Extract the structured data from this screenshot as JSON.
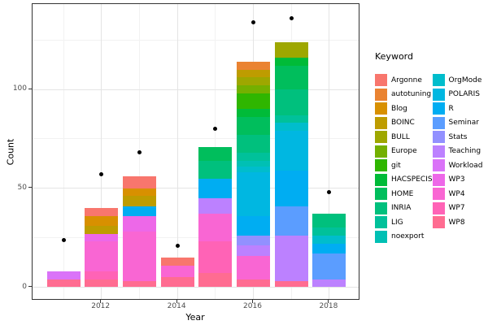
{
  "figure": {
    "x_axis_title": "Year",
    "y_axis_title": "Count",
    "legend_title": "Keyword"
  },
  "chart_data": {
    "type": "bar",
    "subtype": "stacked-with-point-overlay",
    "title": "",
    "xlabel": "Year",
    "ylabel": "Count",
    "legend_title": "Keyword",
    "legend_position": "right",
    "grid": true,
    "stack_order": "first-series-on-top",
    "categories": [
      2011,
      2012,
      2013,
      2014,
      2015,
      2016,
      2017,
      2018
    ],
    "x_major_ticks": [
      2012,
      2014,
      2016,
      2018
    ],
    "x_tick_labels": [
      "2012",
      "2014",
      "2016",
      "2018"
    ],
    "x_minor_gridlines": [
      2011,
      2013,
      2015,
      2017
    ],
    "y_major_ticks": [
      0,
      50,
      100
    ],
    "y_tick_labels": [
      "0",
      "50",
      "100"
    ],
    "y_minor_gridlines": [
      25,
      75,
      125
    ],
    "ylim": [
      -7,
      143
    ],
    "xlim": [
      2010.2,
      2018.8
    ],
    "bar_totals": [
      8,
      40,
      56,
      15,
      71,
      114,
      124,
      37
    ],
    "series": [
      {
        "name": "Argonne",
        "color": "#F8766D",
        "values": [
          0,
          4,
          6,
          4,
          0,
          0,
          0,
          0
        ]
      },
      {
        "name": "autotuning",
        "color": "#EA8331",
        "values": [
          0,
          0,
          0,
          0,
          0,
          4,
          0,
          0
        ]
      },
      {
        "name": "Blog",
        "color": "#D89000",
        "values": [
          0,
          5,
          4,
          0,
          0,
          0,
          0,
          0
        ]
      },
      {
        "name": "BOINC",
        "color": "#BE9C00",
        "values": [
          0,
          4,
          5,
          0,
          0,
          4,
          0,
          0
        ]
      },
      {
        "name": "BULL",
        "color": "#9EA700",
        "values": [
          0,
          0,
          0,
          0,
          0,
          4,
          8,
          0
        ]
      },
      {
        "name": "Europe",
        "color": "#74B000",
        "values": [
          0,
          0,
          0,
          0,
          0,
          4,
          0,
          0
        ]
      },
      {
        "name": "git",
        "color": "#2FB600",
        "values": [
          0,
          0,
          0,
          0,
          0,
          8,
          0,
          0
        ]
      },
      {
        "name": "HACSPECIS",
        "color": "#00BB38",
        "values": [
          0,
          0,
          0,
          0,
          0,
          4,
          4,
          0
        ]
      },
      {
        "name": "HOME",
        "color": "#00BE5C",
        "values": [
          0,
          0,
          0,
          0,
          7,
          9,
          12,
          0
        ]
      },
      {
        "name": "INRIA",
        "color": "#00C07D",
        "values": [
          0,
          0,
          0,
          0,
          9,
          9,
          13,
          7
        ]
      },
      {
        "name": "LIG",
        "color": "#00C19A",
        "values": [
          0,
          0,
          0,
          0,
          0,
          4,
          4,
          4
        ]
      },
      {
        "name": "noexport",
        "color": "#00C0B4",
        "values": [
          0,
          0,
          0,
          0,
          0,
          3,
          0,
          0
        ]
      },
      {
        "name": "OrgMode",
        "color": "#00BDCC",
        "values": [
          0,
          0,
          0,
          0,
          0,
          3,
          4,
          4
        ]
      },
      {
        "name": "POLARIS",
        "color": "#00B7E1",
        "values": [
          0,
          0,
          0,
          0,
          0,
          22,
          20,
          0
        ]
      },
      {
        "name": "R",
        "color": "#00ADF2",
        "values": [
          0,
          0,
          5,
          0,
          10,
          10,
          18,
          5
        ]
      },
      {
        "name": "Seminar",
        "color": "#5B9DFF",
        "values": [
          0,
          0,
          0,
          0,
          0,
          0,
          15,
          13
        ]
      },
      {
        "name": "Stats",
        "color": "#9290FF",
        "values": [
          0,
          0,
          0,
          0,
          0,
          5,
          0,
          0
        ]
      },
      {
        "name": "Teaching",
        "color": "#BC81FF",
        "values": [
          0,
          0,
          0,
          0,
          8,
          5,
          23,
          4
        ]
      },
      {
        "name": "Workload",
        "color": "#DA73F8",
        "values": [
          4,
          0,
          0,
          0,
          0,
          0,
          0,
          0
        ]
      },
      {
        "name": "WP3",
        "color": "#ED68E8",
        "values": [
          0,
          4,
          8,
          0,
          0,
          0,
          0,
          0
        ]
      },
      {
        "name": "WP4",
        "color": "#F966D3",
        "values": [
          0,
          15,
          25,
          6,
          14,
          12,
          0,
          0
        ]
      },
      {
        "name": "WP7",
        "color": "#FF63B6",
        "values": [
          0,
          4,
          0,
          0,
          16,
          0,
          0,
          0
        ]
      },
      {
        "name": "WP8",
        "color": "#FF6C91",
        "values": [
          4,
          4,
          3,
          5,
          7,
          4,
          3,
          0
        ]
      }
    ],
    "overlay_points": {
      "name": "dots",
      "marker": "circle",
      "color": "#000000",
      "values": [
        24,
        57,
        68,
        21,
        80,
        134,
        136,
        48
      ]
    },
    "legend_columns": [
      [
        "Argonne",
        "autotuning",
        "Blog",
        "BOINC",
        "BULL",
        "Europe",
        "git",
        "HACSPECIS",
        "HOME",
        "INRIA",
        "LIG",
        "noexport"
      ],
      [
        "OrgMode",
        "POLARIS",
        "R",
        "Seminar",
        "Stats",
        "Teaching",
        "Workload",
        "WP3",
        "WP4",
        "WP7",
        "WP8"
      ]
    ]
  }
}
